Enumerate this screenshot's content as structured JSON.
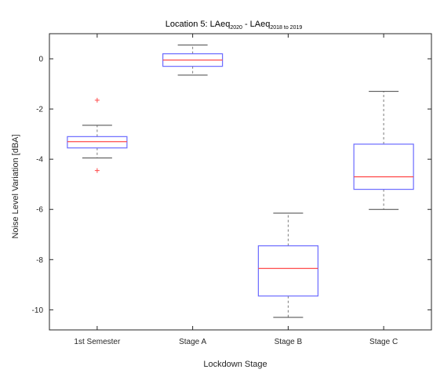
{
  "chart_data": {
    "type": "box",
    "title": {
      "main": "Location 5: LAeq",
      "sub1": "2020",
      "mid": " - LAeq",
      "sub2": "2018 to 2019"
    },
    "xlabel": "Lockdown Stage",
    "ylabel": "Noise Level Variation [dBA]",
    "ylim": [
      -10.8,
      1.0
    ],
    "yticks": [
      0,
      -2,
      -4,
      -6,
      -8,
      -10
    ],
    "grid": false,
    "colors": {
      "box": "#6b6bff",
      "median": "#ff4a4a",
      "whisker": "#7a7a7a",
      "outlier": "#ff4a4a",
      "axis": "#262626"
    },
    "categories": [
      "1st Semester",
      "Stage A",
      "Stage B",
      "Stage C"
    ],
    "boxes": [
      {
        "category": "1st Semester",
        "whisker_low": -3.95,
        "q1": -3.55,
        "median": -3.3,
        "q3": -3.1,
        "whisker_high": -2.65,
        "outliers": [
          -1.65,
          -4.45
        ]
      },
      {
        "category": "Stage A",
        "whisker_low": -0.65,
        "q1": -0.3,
        "median": -0.05,
        "q3": 0.2,
        "whisker_high": 0.55,
        "outliers": []
      },
      {
        "category": "Stage B",
        "whisker_low": -10.3,
        "q1": -9.45,
        "median": -8.35,
        "q3": -7.45,
        "whisker_high": -6.15,
        "outliers": []
      },
      {
        "category": "Stage C",
        "whisker_low": -6.0,
        "q1": -5.2,
        "median": -4.7,
        "q3": -3.4,
        "whisker_high": -1.3,
        "outliers": []
      }
    ]
  }
}
